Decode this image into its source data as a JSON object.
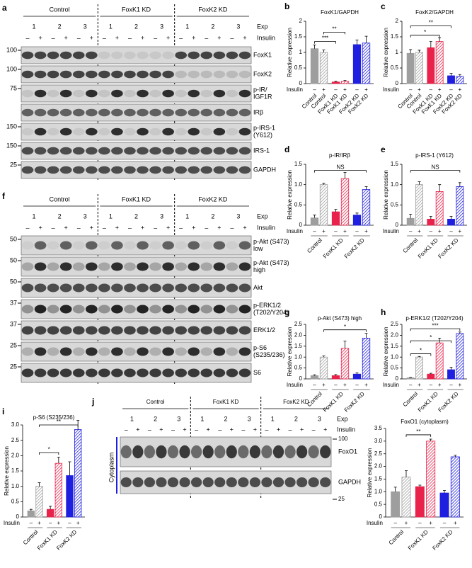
{
  "blots": [
    {
      "label": "a",
      "groups": [
        "Control",
        "FoxK1 KD",
        "FoxK2 KD"
      ],
      "exp_label": "Exp",
      "exp": [
        1,
        2,
        3,
        1,
        2,
        3,
        1,
        2,
        3
      ],
      "insulin_label": "Insulin",
      "insulin": [
        "–",
        "+",
        "–",
        "+",
        "–",
        "+",
        "–",
        "+",
        "–",
        "+",
        "–",
        "+",
        "–",
        "+",
        "–",
        "+",
        "–",
        "+"
      ],
      "rows": [
        "FoxK1",
        "FoxK2",
        [
          "p-IR/",
          "IGF1R"
        ],
        "IRβ",
        [
          "p-IRS-1",
          "(Y612)"
        ],
        "IRS-1",
        "GAPDH"
      ],
      "markers": [
        100,
        100,
        75,
        null,
        150,
        150,
        25
      ]
    },
    {
      "label": "f",
      "groups": [
        "Control",
        "FoxK1 KD",
        "FoxK2 KD"
      ],
      "exp_label": "Exp",
      "exp": [
        1,
        2,
        3,
        1,
        2,
        3,
        1,
        2,
        3
      ],
      "insulin_label": "Insulin",
      "insulin": [
        "–",
        "+",
        "–",
        "+",
        "–",
        "+",
        "–",
        "+",
        "–",
        "+",
        "–",
        "+",
        "–",
        "+",
        "–",
        "+",
        "–",
        "+"
      ],
      "rows": [
        [
          "p-Akt (S473)",
          "low"
        ],
        [
          "p-Akt (S473)",
          "high"
        ],
        "Akt",
        [
          "p-ERK1/2",
          "(T202/Y204)"
        ],
        "ERK1/2",
        [
          "p-S6",
          "(S235/236)"
        ],
        "S6"
      ],
      "markers": [
        50,
        50,
        50,
        37,
        37,
        25,
        25
      ]
    },
    {
      "label": "j",
      "groups": [
        "Control",
        "FoxK1 KD",
        "FoxK2 KD"
      ],
      "exp_label": "Exp",
      "exp": [
        1,
        2,
        3,
        1,
        2,
        3,
        1,
        2,
        3
      ],
      "insulin_label": "Insulin",
      "insulin": [
        "–",
        "+",
        "–",
        "+",
        "–",
        "+",
        "–",
        "+",
        "–",
        "+",
        "–",
        "+",
        "–",
        "+",
        "–",
        "+",
        "–",
        "+"
      ],
      "rows": [
        "FoxO1",
        "GAPDH"
      ],
      "markers": [
        100,
        25
      ],
      "side_label": "Cytoplasm"
    }
  ],
  "chart_data": [
    {
      "type": "bar",
      "label": "b",
      "title": "FoxK1/GAPDH",
      "y_label": "Relative expression",
      "insulin_label": "Insulin",
      "insulin": [
        "–",
        "+",
        "–",
        "+",
        "–",
        "+"
      ],
      "categories": [
        "Control",
        "Control",
        "FoxK1 KD",
        "FoxK1 KD",
        "FoxK2 KD",
        "FoxK2 KD"
      ],
      "values": [
        1.12,
        1.0,
        0.05,
        0.07,
        1.25,
        1.3
      ],
      "errors": [
        0.12,
        0.08,
        0.02,
        0.03,
        0.15,
        0.22
      ],
      "colors": [
        "#9e9e9e",
        "#9e9e9e",
        "#e8224a",
        "#e8224a",
        "#1f1fe0",
        "#1f1fe0"
      ],
      "hatched": [
        false,
        true,
        false,
        true,
        false,
        true
      ],
      "ylim": [
        0,
        2
      ],
      "yticks": [
        0,
        0.5,
        1,
        1.5,
        2
      ],
      "annotations": [
        "***",
        "**"
      ]
    },
    {
      "type": "bar",
      "label": "c",
      "title": "FoxK2/GAPDH",
      "y_label": "Relative expression",
      "insulin_label": "Insulin",
      "insulin": [
        "–",
        "+",
        "–",
        "+",
        "–",
        "+"
      ],
      "categories": [
        "Control",
        "Control",
        "FoxK1 KD",
        "FoxK1 KD",
        "FoxK2 KD",
        "FoxK2 KD"
      ],
      "values": [
        0.97,
        1.0,
        1.15,
        1.35,
        0.25,
        0.23
      ],
      "errors": [
        0.12,
        0.07,
        0.2,
        0.12,
        0.08,
        0.06
      ],
      "colors": [
        "#9e9e9e",
        "#9e9e9e",
        "#e8224a",
        "#e8224a",
        "#1f1fe0",
        "#1f1fe0"
      ],
      "hatched": [
        false,
        true,
        false,
        true,
        false,
        true
      ],
      "ylim": [
        0,
        2
      ],
      "yticks": [
        0,
        0.5,
        1,
        1.5,
        2
      ],
      "annotations": [
        "*",
        "**"
      ]
    },
    {
      "type": "bar",
      "label": "d",
      "title": "p-IR/IRβ",
      "y_label": "Relative expression",
      "insulin_label": "Insulin",
      "insulin": [
        "–",
        "+",
        "–",
        "+",
        "–",
        "+"
      ],
      "groups": [
        "Control",
        "FoxK1 KD",
        "FoxK2 KD"
      ],
      "values": [
        0.18,
        1.0,
        0.33,
        1.15,
        0.25,
        0.88
      ],
      "errors": [
        0.07,
        0.03,
        0.06,
        0.15,
        0.05,
        0.07
      ],
      "colors": [
        "#9e9e9e",
        "#9e9e9e",
        "#e8224a",
        "#e8224a",
        "#1f1fe0",
        "#1f1fe0"
      ],
      "hatched": [
        false,
        true,
        false,
        true,
        false,
        true
      ],
      "ylim": [
        0,
        1.5
      ],
      "yticks": [
        0,
        0.5,
        {
          "value": 1,
          "label": "1.0"
        },
        1.5
      ],
      "annotations": [
        "NS"
      ]
    },
    {
      "type": "bar",
      "label": "e",
      "title": "p-IRS-1 (Y612)",
      "y_label": "Relative expression",
      "insulin_label": "Insulin",
      "insulin": [
        "–",
        "+",
        "–",
        "+",
        "–",
        "+"
      ],
      "groups": [
        "Control",
        "FoxK1 KD",
        "FoxK2 KD"
      ],
      "values": [
        0.17,
        1.0,
        0.15,
        0.83,
        0.15,
        0.95
      ],
      "errors": [
        0.1,
        0.07,
        0.07,
        0.17,
        0.07,
        0.1
      ],
      "colors": [
        "#9e9e9e",
        "#9e9e9e",
        "#e8224a",
        "#e8224a",
        "#1f1fe0",
        "#1f1fe0"
      ],
      "hatched": [
        false,
        true,
        false,
        true,
        false,
        true
      ],
      "ylim": [
        0,
        1.5
      ],
      "yticks": [
        0,
        0.5,
        {
          "value": 1,
          "label": "1.0"
        },
        1.5
      ],
      "annotations": [
        "NS"
      ]
    },
    {
      "type": "bar",
      "label": "g",
      "title": "p-Akt (S473) high",
      "y_label": "Relative expression",
      "insulin_label": "Insulin",
      "insulin": [
        "–",
        "+",
        "–",
        "+",
        "–",
        "+"
      ],
      "groups": [
        "Control",
        "FoxK1 KD",
        "FoxK2 KD"
      ],
      "values": [
        0.15,
        1.0,
        0.15,
        1.4,
        0.22,
        1.87
      ],
      "errors": [
        0.04,
        0.05,
        0.05,
        0.33,
        0.06,
        0.22
      ],
      "colors": [
        "#9e9e9e",
        "#9e9e9e",
        "#e8224a",
        "#e8224a",
        "#1f1fe0",
        "#1f1fe0"
      ],
      "hatched": [
        false,
        true,
        false,
        true,
        false,
        true
      ],
      "ylim": [
        0,
        2.5
      ],
      "yticks": [
        0,
        0.5,
        {
          "value": 1,
          "label": "1.0"
        },
        1.5,
        {
          "value": 2,
          "label": "2.0"
        },
        2.5
      ],
      "annotations": [
        "*"
      ]
    },
    {
      "type": "bar",
      "label": "h",
      "title": "p-ERK1/2 (T202/Y204)",
      "y_label": "Relative expression",
      "insulin_label": "Insulin",
      "insulin": [
        "–",
        "+",
        "–",
        "+",
        "–",
        "+"
      ],
      "groups": [
        "Control",
        "FoxK1 KD",
        "FoxK2 KD"
      ],
      "values": [
        0.05,
        1.0,
        0.22,
        1.65,
        0.42,
        2.08
      ],
      "errors": [
        0.02,
        0.03,
        0.04,
        0.22,
        0.12,
        0.07
      ],
      "colors": [
        "#9e9e9e",
        "#9e9e9e",
        "#e8224a",
        "#e8224a",
        "#1f1fe0",
        "#1f1fe0"
      ],
      "hatched": [
        false,
        true,
        false,
        true,
        false,
        true
      ],
      "ylim": [
        0,
        2.5
      ],
      "yticks": [
        0,
        0.5,
        {
          "value": 1,
          "label": "1.0"
        },
        1.5,
        {
          "value": 2,
          "label": "2.0"
        },
        2.5
      ],
      "annotations": [
        "*",
        "*",
        "***"
      ]
    },
    {
      "type": "bar",
      "label": "i",
      "title": "p-S6 (S235/236)",
      "y_label": "Relative expression",
      "insulin_label": "Insulin",
      "insulin": [
        "–",
        "+",
        "–",
        "+",
        "–",
        "+"
      ],
      "groups": [
        "Control",
        "FoxK1 KD",
        "FoxK2 KD"
      ],
      "values": [
        0.2,
        1.0,
        0.25,
        1.75,
        1.35,
        2.85
      ],
      "errors": [
        0.05,
        0.12,
        0.1,
        0.2,
        0.45,
        0.3
      ],
      "colors": [
        "#9e9e9e",
        "#9e9e9e",
        "#e8224a",
        "#e8224a",
        "#1f1fe0",
        "#1f1fe0"
      ],
      "hatched": [
        false,
        true,
        false,
        true,
        false,
        true
      ],
      "ylim": [
        0,
        3
      ],
      "yticks": [
        0,
        0.5,
        {
          "value": 1,
          "label": "1.0"
        },
        1.5,
        {
          "value": 2,
          "label": "2.0"
        },
        2.5,
        {
          "value": 3,
          "label": "3.0"
        }
      ],
      "annotations": [
        "*",
        "**"
      ]
    },
    {
      "type": "bar",
      "title": "FoxO1 (cytoplasm)",
      "y_label": "Relative expression",
      "insulin_label": "Insulin",
      "insulin": [
        "–",
        "+",
        "–",
        "+",
        "–",
        "+"
      ],
      "groups": [
        "Control",
        "FoxK1 KD",
        "FoxK2 KD"
      ],
      "values": [
        1.0,
        1.58,
        1.2,
        3.0,
        0.95,
        2.38
      ],
      "errors": [
        0.18,
        0.25,
        0.06,
        0.08,
        0.1,
        0.06
      ],
      "colors": [
        "#9e9e9e",
        "#9e9e9e",
        "#e8224a",
        "#e8224a",
        "#1f1fe0",
        "#1f1fe0"
      ],
      "hatched": [
        false,
        true,
        false,
        true,
        false,
        true
      ],
      "ylim": [
        0,
        3.5
      ],
      "yticks": [
        0,
        0.5,
        {
          "value": 1,
          "label": "1.0"
        },
        1.5,
        {
          "value": 2,
          "label": "2.0"
        },
        2.5,
        {
          "value": 3,
          "label": "3.0"
        },
        3.5
      ],
      "annotations": [
        "**"
      ]
    }
  ]
}
